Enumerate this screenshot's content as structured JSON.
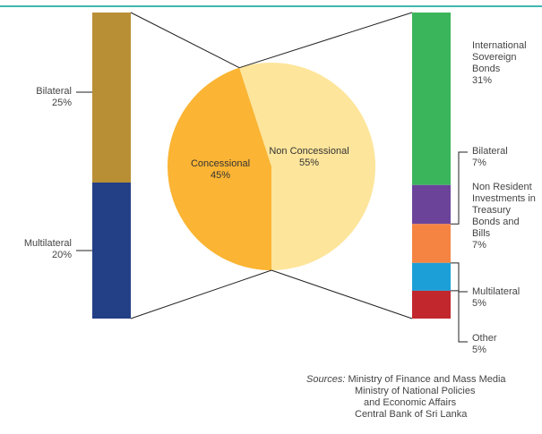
{
  "chart_data": {
    "type": "bar-of-pie",
    "pie": {
      "categories": [
        "Concessional",
        "Non Concessional"
      ],
      "values": [
        45,
        55
      ],
      "value_labels": [
        "45%",
        "55%"
      ],
      "colors": [
        "#fbb433",
        "#fde59b"
      ]
    },
    "left_bar": {
      "categories": [
        "Bilateral",
        "Multilateral"
      ],
      "values": [
        25,
        20
      ],
      "value_labels": [
        "25%",
        "20%"
      ],
      "colors": [
        "#b98f35",
        "#233f86"
      ]
    },
    "right_bar": {
      "categories": [
        "International Sovereign Bonds",
        "Bilateral",
        "Non Resident Investments in Treasury Bonds and Bills",
        "Multilateral",
        "Other"
      ],
      "values": [
        31,
        7,
        7,
        5,
        5
      ],
      "value_labels": [
        "31%",
        "7%",
        "7%",
        "5%",
        "5%"
      ],
      "colors": [
        "#3bb55b",
        "#6b449a",
        "#f58442",
        "#1c9fd6",
        "#c1272d"
      ]
    },
    "sources": {
      "label": "Sources:",
      "lines": [
        "Ministry of Finance and Mass Media",
        "Ministry of National Policies",
        "and Economic Affairs",
        "Central Bank of Sri Lanka"
      ]
    }
  }
}
